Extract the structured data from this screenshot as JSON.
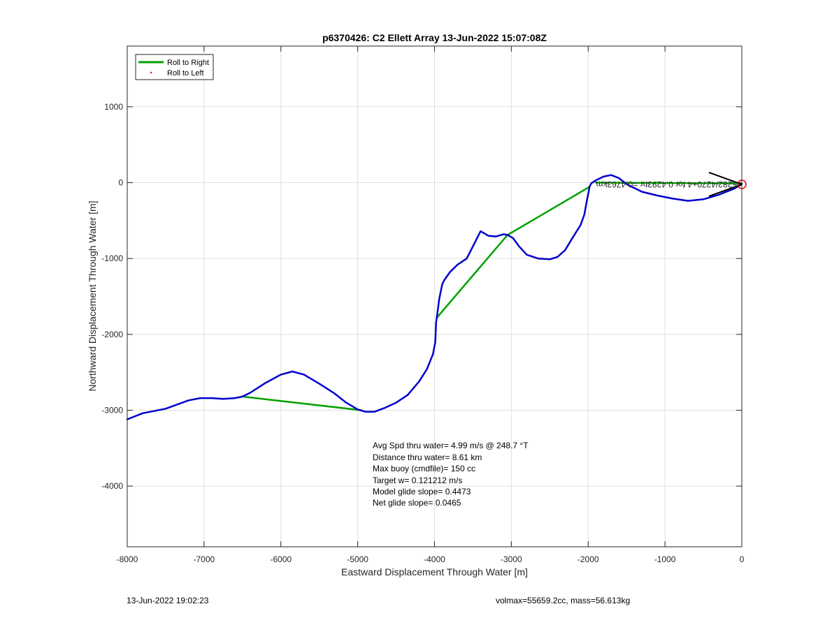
{
  "chart_data": {
    "type": "line",
    "title": "p6370426: C2 Ellett Array 13-Jun-2022 15:07:08Z",
    "xlabel": "Eastward Displacement Through Water [m]",
    "ylabel": "Northward Displacement Through Water [m]",
    "xlim": [
      -8000,
      0
    ],
    "ylim": [
      -4800,
      1800
    ],
    "xticks": [
      -8000,
      -7000,
      -6000,
      -5000,
      -4000,
      -3000,
      -2000,
      -1000,
      0
    ],
    "yticks": [
      -4000,
      -3000,
      -2000,
      -1000,
      0,
      1000
    ],
    "grid": true,
    "legend": {
      "placement": "top-left",
      "entries": [
        {
          "label": "Roll to Right",
          "color": "#00a000",
          "style": "line"
        },
        {
          "label": "Roll to Left",
          "color": "#ff0000",
          "style": "dot"
        }
      ]
    },
    "series": [
      {
        "name": "Roll to Right",
        "color": "#00a000",
        "segments": [
          [
            [
              -6500,
              -2820
            ],
            [
              -4950,
              -3000
            ]
          ],
          [
            [
              -3970,
              -1780
            ],
            [
              -3050,
              -690
            ]
          ],
          [
            [
              -3050,
              -690
            ],
            [
              -1990,
              -60
            ]
          ],
          [
            [
              -1900,
              0
            ],
            [
              0,
              -10
            ]
          ]
        ]
      },
      {
        "name": "track",
        "color": "#0000cc",
        "x": [
          -8000,
          -7800,
          -7500,
          -7200,
          -7050,
          -6900,
          -6750,
          -6600,
          -6500,
          -6400,
          -6200,
          -6000,
          -5850,
          -5700,
          -5500,
          -5300,
          -5150,
          -5000,
          -4900,
          -4780,
          -4650,
          -4500,
          -4350,
          -4200,
          -4100,
          -4020,
          -3990,
          -3980,
          -3960,
          -3940,
          -3900,
          -3870,
          -3800,
          -3700,
          -3580,
          -3450,
          -3400,
          -3300,
          -3200,
          -3100,
          -3050,
          -2980,
          -2900,
          -2800,
          -2650,
          -2500,
          -2400,
          -2300,
          -2200,
          -2100,
          -2050,
          -2020,
          -2000,
          -1990,
          -1980,
          -1960,
          -1900,
          -1800,
          -1700,
          -1600,
          -1500,
          -1300,
          -1100,
          -900,
          -700,
          -500,
          -300,
          -100,
          0
        ],
        "y": [
          -3120,
          -3040,
          -2980,
          -2870,
          -2840,
          -2840,
          -2850,
          -2840,
          -2820,
          -2770,
          -2640,
          -2530,
          -2490,
          -2530,
          -2650,
          -2780,
          -2900,
          -2990,
          -3020,
          -3020,
          -2970,
          -2900,
          -2800,
          -2620,
          -2460,
          -2260,
          -2100,
          -1850,
          -1700,
          -1540,
          -1340,
          -1280,
          -1180,
          -1080,
          -1000,
          -740,
          -640,
          -700,
          -710,
          -680,
          -690,
          -730,
          -840,
          -950,
          -1000,
          -1010,
          -980,
          -890,
          -720,
          -560,
          -420,
          -250,
          -150,
          -100,
          -50,
          -10,
          30,
          80,
          100,
          60,
          -20,
          -120,
          -170,
          -210,
          -240,
          -220,
          -160,
          -80,
          -20
        ]
      }
    ],
    "annotations": [
      "Avg Spd thru water=  4.99 m/s @ 248.7 °T",
      "Distance thru water=  8.61 km",
      "Max buoy (cmdfile)= 150 cc",
      "Target w= 0.121212 m/s",
      "Model glide slope= 0.4473",
      "Net glide slope= 0.0465"
    ],
    "marker_label": "-5282/4270+4 for 0.4293hr =0.4763km"
  },
  "footer": {
    "left": "13-Jun-2022 19:02:23",
    "right": "volmax=55659.2cc, mass=56.613kg"
  },
  "colors": {
    "track": "#0000cc",
    "roll_right": "#00a000",
    "roll_left": "#ff0000",
    "marker": "#e00000",
    "grid": "#e0e0e0"
  }
}
